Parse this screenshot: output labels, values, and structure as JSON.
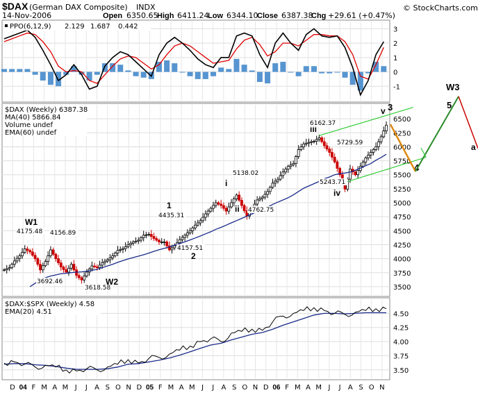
{
  "header": {
    "symbol": "$DAX",
    "name": "(German DAX Composite)",
    "exchange": "INDX",
    "date": "14-Nov-2006",
    "open_label": "Open",
    "open": "6350.65",
    "high_label": "High",
    "high": "6411.24",
    "low_label": "Low",
    "low": "6344.10",
    "close_label": "Close",
    "close": "6387.38",
    "chg_label": "Chg",
    "chg": "+29.61 (+0.47%)",
    "watermark": "© StockCharts.com"
  },
  "colors": {
    "up": "#000000",
    "down": "#cc0000",
    "ppo": "#000000",
    "signal": "#e00000",
    "hist": "#3a83c9",
    "ma40": "#1a2a8a",
    "ema60": "#cc0000",
    "channel": "#33cc33",
    "wave_blue": "#1a2aa8",
    "wave_green": "#2a8a2a",
    "projection_orange": "#e08a10"
  },
  "chart_data": [
    {
      "type": "line",
      "panel": "PPO",
      "title": "PPO(6,12,9) 2.129, 1.687, 0.442",
      "legend": {
        "label": "PPO(6,12,9)",
        "ppo_value": "2.129",
        "signal_value": "1.687",
        "hist_value": "0.442"
      },
      "ylim": [
        -2,
        3.5
      ],
      "yticks": [
        "3",
        "2",
        "1",
        "0",
        "-1"
      ],
      "x": [
        0,
        3,
        6,
        9,
        12,
        15,
        18,
        21,
        24,
        27,
        30,
        33,
        36,
        39,
        42,
        45,
        48,
        51,
        54,
        57,
        60,
        63,
        66,
        69,
        72,
        75,
        78,
        81,
        84,
        87,
        90,
        93,
        96,
        99,
        102,
        105,
        108,
        111,
        114,
        117,
        120,
        123,
        126,
        129,
        132,
        135,
        138,
        141,
        144,
        147
      ],
      "series": [
        {
          "name": "PPO",
          "values": [
            2.3,
            2.5,
            2.7,
            2.9,
            2.4,
            1.5,
            0.5,
            -0.6,
            -0.2,
            0.5,
            -0.2,
            -1.2,
            -1.0,
            0.4,
            1.0,
            1.4,
            1.2,
            0.7,
            0.2,
            -0.3,
            1.2,
            2.0,
            2.4,
            2.0,
            1.5,
            0.9,
            0.5,
            0.3,
            1.0,
            1.0,
            2.5,
            2.7,
            2.5,
            1.2,
            0.3,
            2.0,
            2.7,
            2.0,
            1.5,
            2.6,
            3.0,
            2.5,
            2.4,
            2.5,
            1.7,
            0.3,
            -1.6,
            -0.6,
            1.2,
            2.1
          ]
        },
        {
          "name": "Signal",
          "values": [
            2.1,
            2.3,
            2.5,
            2.7,
            2.6,
            2.1,
            1.4,
            0.4,
            0.0,
            0.1,
            0.0,
            -0.6,
            -0.8,
            -0.2,
            0.4,
            0.9,
            1.1,
            1.0,
            0.6,
            0.2,
            0.5,
            1.2,
            1.8,
            2.0,
            1.8,
            1.4,
            1.0,
            0.6,
            0.7,
            0.8,
            1.6,
            2.2,
            2.4,
            1.9,
            1.1,
            1.4,
            2.0,
            2.0,
            1.8,
            2.2,
            2.6,
            2.6,
            2.5,
            2.5,
            2.1,
            1.2,
            -0.3,
            -0.5,
            0.5,
            1.7
          ]
        },
        {
          "name": "Histogram",
          "values": [
            0.2,
            0.2,
            0.2,
            0.2,
            -0.2,
            -0.6,
            -0.9,
            -1.0,
            -0.2,
            0.4,
            -0.2,
            -0.6,
            -0.2,
            0.6,
            0.6,
            0.5,
            0.1,
            -0.3,
            -0.4,
            -0.5,
            0.7,
            0.8,
            0.6,
            0.0,
            -0.3,
            -0.5,
            -0.5,
            -0.3,
            0.3,
            0.2,
            0.9,
            0.5,
            0.1,
            -0.7,
            -0.8,
            0.6,
            0.7,
            0.0,
            -0.3,
            0.4,
            0.4,
            -0.1,
            -0.1,
            0.0,
            -0.4,
            -0.9,
            -1.3,
            -0.1,
            0.7,
            0.4
          ]
        }
      ]
    },
    {
      "type": "line",
      "panel": "Price",
      "legend": {
        "main": "$DAX (Weekly) 6387.38",
        "ma": "MA(40) 5866.84",
        "vol": "Volume undef",
        "ema": "EMA(60) undef"
      },
      "ylim": [
        3350,
        6750
      ],
      "yticks": [
        "6500",
        "6250",
        "6000",
        "5750",
        "5500",
        "5250",
        "5000",
        "4750",
        "4500",
        "4250",
        "4000",
        "3750",
        "3500"
      ],
      "x": [
        0,
        2,
        4,
        6,
        8,
        10,
        12,
        14,
        16,
        18,
        20,
        22,
        24,
        26,
        28,
        30,
        32,
        34,
        36,
        38,
        40,
        42,
        44,
        46,
        48,
        50,
        52,
        54,
        56,
        58,
        60,
        62,
        64,
        66,
        68,
        70,
        72,
        74,
        76,
        78,
        80,
        82,
        84,
        86,
        88,
        90,
        92,
        94,
        96,
        98,
        100,
        102,
        104,
        106,
        108,
        110,
        112,
        114,
        116,
        118,
        120,
        122,
        124,
        126,
        128,
        130,
        132,
        134,
        136,
        138,
        140,
        142,
        144,
        146,
        148
      ],
      "series": [
        {
          "name": "Close",
          "values": [
            3800,
            3840,
            3960,
            4050,
            4175,
            4120,
            4000,
            3800,
            3950,
            4157,
            4000,
            3850,
            3760,
            3900,
            3700,
            3619,
            3760,
            3870,
            3840,
            3930,
            3980,
            4050,
            4150,
            4180,
            4250,
            4300,
            4330,
            4420,
            4435,
            4360,
            4300,
            4300,
            4158,
            4230,
            4340,
            4420,
            4500,
            4600,
            4680,
            4800,
            4900,
            5000,
            4950,
            4850,
            5000,
            5138,
            4950,
            4762,
            4900,
            5050,
            5100,
            5200,
            5350,
            5420,
            5550,
            5650,
            5700,
            5950,
            6050,
            6080,
            6100,
            6162,
            6020,
            5900,
            5730,
            5500,
            5244,
            5600,
            5500,
            5650,
            5800,
            5900,
            6000,
            6180,
            6387
          ]
        },
        {
          "name": "MA(40)",
          "values": [
            null,
            null,
            null,
            null,
            null,
            3500,
            3560,
            3620,
            3660,
            3690,
            3710,
            3730,
            3740,
            3750,
            3760,
            3765,
            3775,
            3790,
            3810,
            3840,
            3870,
            3900,
            3935,
            3965,
            3995,
            4020,
            4045,
            4070,
            4100,
            4130,
            4160,
            4185,
            4210,
            4240,
            4270,
            4300,
            4335,
            4370,
            4405,
            4445,
            4480,
            4525,
            4560,
            4600,
            4640,
            4680,
            4720,
            4760,
            4800,
            4840,
            4880,
            4920,
            4970,
            5010,
            5050,
            5090,
            5140,
            5200,
            5260,
            5300,
            5340,
            5380,
            5430,
            5460,
            5500,
            5520,
            5530,
            5550,
            5580,
            5620,
            5660,
            5700,
            5760,
            5810,
            5866
          ]
        }
      ],
      "annotations": [
        {
          "label": "W1",
          "x": 4,
          "y": 4175,
          "role": "wave-label"
        },
        {
          "label": "4175.48",
          "x": 4,
          "y": 4175,
          "role": "price-label"
        },
        {
          "label": "4156.89",
          "x": 9,
          "y": 4157,
          "role": "price-label"
        },
        {
          "label": "3692.46",
          "x": 12,
          "y": 3692,
          "role": "price-label"
        },
        {
          "label": "3618.58",
          "x": 30,
          "y": 3619,
          "role": "price-label"
        },
        {
          "label": "W2",
          "x": 30,
          "y": 3619,
          "role": "wave-label"
        },
        {
          "label": "1",
          "x": 58,
          "y": 4435,
          "role": "wave-label"
        },
        {
          "label": "4435.31",
          "x": 58,
          "y": 4435,
          "role": "price-label"
        },
        {
          "label": "4157.51",
          "x": 66,
          "y": 4158,
          "role": "price-label"
        },
        {
          "label": "2",
          "x": 66,
          "y": 4158,
          "role": "wave-label"
        },
        {
          "label": "i",
          "x": 82,
          "y": 5000,
          "role": "wave-label"
        },
        {
          "label": "5138.02",
          "x": 90,
          "y": 5138,
          "role": "price-label"
        },
        {
          "label": "ii",
          "x": 86,
          "y": 4850,
          "role": "wave-label"
        },
        {
          "label": "4762.75",
          "x": 94,
          "y": 4762,
          "role": "price-label"
        },
        {
          "label": "iii",
          "x": 120,
          "y": 6100,
          "role": "wave-label"
        },
        {
          "label": "6162.37",
          "x": 122,
          "y": 6162,
          "role": "price-label"
        },
        {
          "label": "5729.59",
          "x": 128,
          "y": 5730,
          "role": "price-label"
        },
        {
          "label": "5243.71",
          "x": 132,
          "y": 5244,
          "role": "price-label"
        },
        {
          "label": "iv",
          "x": 132,
          "y": 5244,
          "role": "wave-label"
        },
        {
          "label": "v",
          "x": 146,
          "y": 6400,
          "role": "wave-label"
        },
        {
          "label": "3",
          "x": 148,
          "y": 6450,
          "role": "wave-label"
        },
        {
          "label": "4",
          "x": 156,
          "y": 5450,
          "role": "wave-label"
        },
        {
          "label": "5",
          "x": 163,
          "y": 6800,
          "role": "wave-label"
        },
        {
          "label": "W3",
          "x": 165,
          "y": 7050,
          "role": "wave-label"
        },
        {
          "label": "a",
          "x": 172,
          "y": 5800,
          "role": "wave-label"
        }
      ],
      "projection": {
        "wave3_top": 6400,
        "wave4_low": 5560,
        "wave5_top": 6900
      },
      "channel": {
        "upper": [
          [
            122,
            6200
          ],
          [
            150,
            6600
          ]
        ],
        "lower": [
          [
            131,
            5350
          ],
          [
            158,
            5750
          ]
        ]
      }
    },
    {
      "type": "line",
      "panel": "Ratio",
      "legend": {
        "main": "$DAX:$SPX (Weekly) 4.58",
        "ema": "EMA(20) 4.51"
      },
      "ylim": [
        3.35,
        4.75
      ],
      "yticks": [
        "4.50",
        "4.25",
        "4.00",
        "3.75",
        "3.50"
      ],
      "x": [
        0,
        4,
        8,
        12,
        16,
        20,
        24,
        28,
        32,
        36,
        40,
        44,
        48,
        52,
        56,
        60,
        64,
        68,
        72,
        76,
        80,
        84,
        88,
        92,
        96,
        100,
        104,
        108,
        112,
        116,
        120,
        124,
        128,
        132,
        136,
        140,
        144,
        148
      ],
      "series": [
        {
          "name": "$DAX:$SPX",
          "values": [
            3.62,
            3.64,
            3.6,
            3.55,
            3.58,
            3.55,
            3.5,
            3.48,
            3.52,
            3.5,
            3.55,
            3.6,
            3.68,
            3.62,
            3.7,
            3.72,
            3.78,
            3.85,
            3.92,
            4.0,
            4.05,
            4.0,
            4.15,
            4.18,
            4.22,
            4.2,
            4.35,
            4.45,
            4.5,
            4.55,
            4.6,
            4.55,
            4.5,
            4.48,
            4.52,
            4.55,
            4.58,
            4.58
          ]
        },
        {
          "name": "EMA(20)",
          "values": [
            3.6,
            3.61,
            3.61,
            3.59,
            3.58,
            3.56,
            3.53,
            3.51,
            3.51,
            3.51,
            3.52,
            3.55,
            3.6,
            3.61,
            3.64,
            3.67,
            3.71,
            3.76,
            3.82,
            3.88,
            3.94,
            3.97,
            4.03,
            4.08,
            4.13,
            4.16,
            4.22,
            4.29,
            4.35,
            4.41,
            4.47,
            4.5,
            4.5,
            4.49,
            4.5,
            4.51,
            4.51,
            4.51
          ]
        }
      ]
    }
  ],
  "x_axis": {
    "labels": [
      "D",
      "04",
      "F",
      "M",
      "A",
      "M",
      "J",
      "J",
      "A",
      "S",
      "O",
      "N",
      "D",
      "05",
      "F",
      "M",
      "A",
      "M",
      "J",
      "J",
      "A",
      "S",
      "O",
      "N",
      "D",
      "06",
      "F",
      "M",
      "A",
      "M",
      "J",
      "J",
      "A",
      "S",
      "O",
      "N"
    ],
    "bold": [
      "04",
      "05",
      "06"
    ]
  }
}
